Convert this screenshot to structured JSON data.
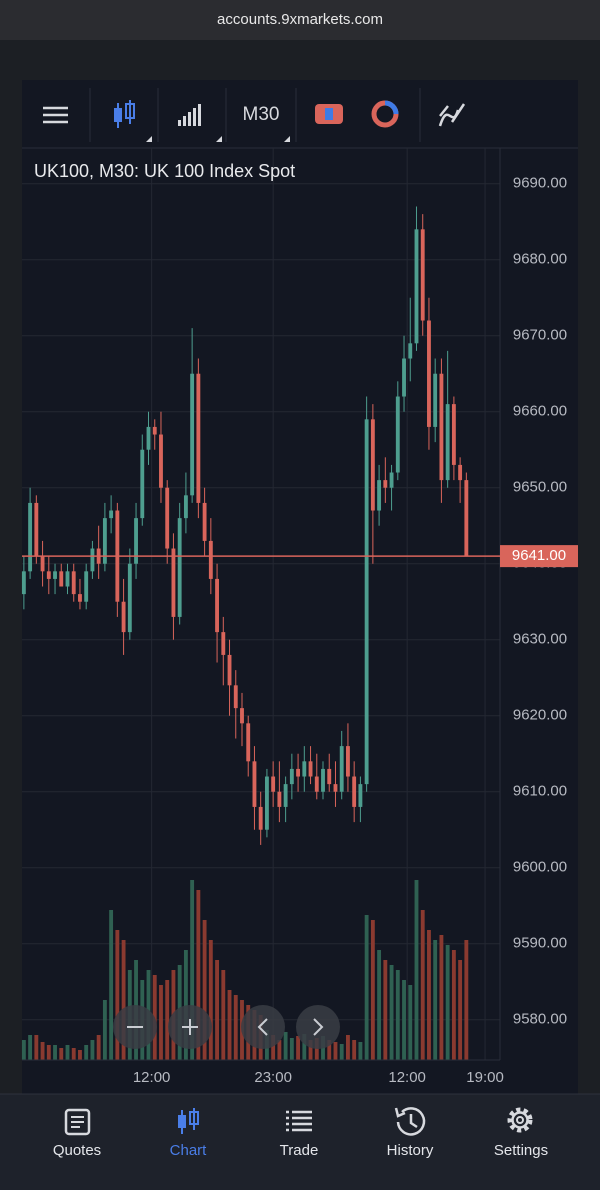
{
  "browser": {
    "url": "accounts.9xmarkets.com"
  },
  "toolbar": {
    "timeframe": "M30"
  },
  "chart_data": {
    "type": "candlestick",
    "title": "UK100, M30: UK 100 Index Spot",
    "up_color": "#4e9e8f",
    "down_color": "#d9655b",
    "volume_up_color": "#2f6152",
    "volume_down_color": "#8a3a30",
    "candles": [
      [
        9636,
        9641,
        9634,
        9639
      ],
      [
        9639,
        9650,
        9638,
        9648
      ],
      [
        9648,
        9649,
        9640,
        9641
      ],
      [
        9641,
        9643,
        9637,
        9639
      ],
      [
        9639,
        9641,
        9636,
        9638
      ],
      [
        9638,
        9640,
        9636,
        9639
      ],
      [
        9639,
        9640,
        9637,
        9637
      ],
      [
        9637,
        9640,
        9636,
        9639
      ],
      [
        9639,
        9640,
        9635,
        9636
      ],
      [
        9636,
        9638,
        9634,
        9635
      ],
      [
        9635,
        9640,
        9634,
        9639
      ],
      [
        9639,
        9643,
        9638,
        9642
      ],
      [
        9642,
        9645,
        9638,
        9640
      ],
      [
        9640,
        9648,
        9639,
        9646
      ],
      [
        9646,
        9649,
        9644,
        9647
      ],
      [
        9647,
        9648,
        9633,
        9635
      ],
      [
        9635,
        9638,
        9628,
        9631
      ],
      [
        9631,
        9642,
        9630,
        9640
      ],
      [
        9640,
        9648,
        9638,
        9646
      ],
      [
        9646,
        9657,
        9645,
        9655
      ],
      [
        9655,
        9660,
        9653,
        9658
      ],
      [
        9658,
        9659,
        9655,
        9657
      ],
      [
        9657,
        9660,
        9648,
        9650
      ],
      [
        9650,
        9651,
        9640,
        9642
      ],
      [
        9642,
        9644,
        9630,
        9633
      ],
      [
        9633,
        9648,
        9632,
        9646
      ],
      [
        9646,
        9652,
        9644,
        9649
      ],
      [
        9649,
        9671,
        9648,
        9665
      ],
      [
        9665,
        9667,
        9646,
        9648
      ],
      [
        9648,
        9650,
        9641,
        9643
      ],
      [
        9643,
        9646,
        9636,
        9638
      ],
      [
        9638,
        9640,
        9627,
        9631
      ],
      [
        9631,
        9633,
        9624,
        9628
      ],
      [
        9628,
        9630,
        9620,
        9624
      ],
      [
        9624,
        9626,
        9617,
        9621
      ],
      [
        9621,
        9623,
        9616,
        9619
      ],
      [
        9619,
        9620,
        9612,
        9614
      ],
      [
        9614,
        9616,
        9605,
        9608
      ],
      [
        9608,
        9610,
        9603,
        9605
      ],
      [
        9605,
        9613,
        9604,
        9612
      ],
      [
        9612,
        9614,
        9608,
        9610
      ],
      [
        9610,
        9614,
        9606,
        9608
      ],
      [
        9608,
        9612,
        9606,
        9611
      ],
      [
        9611,
        9615,
        9609,
        9613
      ],
      [
        9613,
        9615,
        9610,
        9612
      ],
      [
        9612,
        9616,
        9610,
        9614
      ],
      [
        9614,
        9616,
        9611,
        9612
      ],
      [
        9612,
        9615,
        9609,
        9610
      ],
      [
        9610,
        9614,
        9609,
        9613
      ],
      [
        9613,
        9615,
        9610,
        9611
      ],
      [
        9611,
        9614,
        9608,
        9610
      ],
      [
        9610,
        9618,
        9609,
        9616
      ],
      [
        9616,
        9619,
        9610,
        9612
      ],
      [
        9612,
        9614,
        9606,
        9608
      ],
      [
        9608,
        9612,
        9606,
        9611
      ],
      [
        9611,
        9662,
        9610,
        9659
      ],
      [
        9659,
        9661,
        9640,
        9647
      ],
      [
        9647,
        9653,
        9645,
        9651
      ],
      [
        9651,
        9654,
        9648,
        9650
      ],
      [
        9650,
        9653,
        9647,
        9652
      ],
      [
        9652,
        9664,
        9651,
        9662
      ],
      [
        9662,
        9670,
        9660,
        9667
      ],
      [
        9667,
        9675,
        9664,
        9669
      ],
      [
        9669,
        9687,
        9668,
        9684
      ],
      [
        9684,
        9686,
        9670,
        9672
      ],
      [
        9672,
        9675,
        9655,
        9658
      ],
      [
        9658,
        9667,
        9656,
        9665
      ],
      [
        9665,
        9667,
        9648,
        9651
      ],
      [
        9651,
        9668,
        9650,
        9661
      ],
      [
        9661,
        9662,
        9651,
        9653
      ],
      [
        9653,
        9654,
        9648,
        9651
      ],
      [
        9651,
        9652,
        9641,
        9641
      ]
    ],
    "volumes": [
      20,
      25,
      25,
      18,
      15,
      15,
      12,
      15,
      12,
      10,
      15,
      20,
      25,
      60,
      150,
      130,
      120,
      90,
      100,
      80,
      90,
      85,
      75,
      80,
      90,
      95,
      110,
      180,
      170,
      140,
      120,
      100,
      90,
      70,
      65,
      60,
      55,
      50,
      45,
      30,
      25,
      20,
      28,
      22,
      24,
      26,
      20,
      22,
      24,
      20,
      18,
      16,
      25,
      20,
      18,
      145,
      140,
      110,
      100,
      95,
      90,
      80,
      75,
      180,
      150,
      130,
      120,
      125,
      115,
      110,
      100,
      120
    ],
    "volume_ylim": [
      0,
      200
    ],
    "ylim": [
      9574.7,
      9694.7
    ],
    "yticks": [
      {
        "value": 9690,
        "label": "9690.00"
      },
      {
        "value": 9680,
        "label": "9680.00"
      },
      {
        "value": 9670,
        "label": "9670.00"
      },
      {
        "value": 9660,
        "label": "9660.00"
      },
      {
        "value": 9650,
        "label": "9650.00"
      },
      {
        "value": 9640,
        "label": "9640.00"
      },
      {
        "value": 9630,
        "label": "9630.00"
      },
      {
        "value": 9620,
        "label": "9620.00"
      },
      {
        "value": 9610,
        "label": "9610.00"
      },
      {
        "value": 9600,
        "label": "9600.00"
      },
      {
        "value": 9590,
        "label": "9590.00"
      },
      {
        "value": 9580,
        "label": "9580.00"
      }
    ],
    "xlim": [
      -0.3,
      76.4
    ],
    "xticks": [
      {
        "value": 20.5,
        "label": "12:00"
      },
      {
        "value": 40,
        "label": "23:00"
      },
      {
        "value": 61.5,
        "label": "12:00"
      },
      {
        "value": 74,
        "label": "19:00"
      }
    ],
    "last_price": {
      "value": 9641,
      "label": "9641.00"
    },
    "grid": true
  },
  "nav": {
    "items": [
      "Quotes",
      "Chart",
      "Trade",
      "History",
      "Settings"
    ],
    "active": 1
  }
}
